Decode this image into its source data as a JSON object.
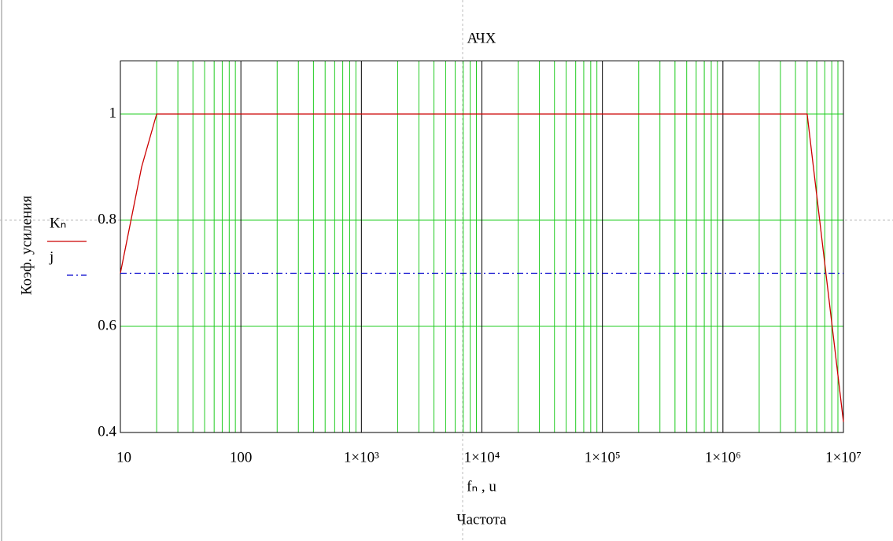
{
  "chart_data": {
    "type": "line",
    "title": "АЧХ",
    "x_label": "Частота",
    "x_expression": "fₙ , u",
    "y_label": "Коэф. усиления",
    "x_log": true,
    "grid": true,
    "minor_grid": true,
    "xlim": [
      10,
      10000000
    ],
    "ylim": [
      0.4,
      1.1
    ],
    "xticks": [
      10,
      100,
      {
        "value": 1000,
        "label": "1×10³"
      },
      {
        "value": 10000,
        "label": "1×10⁴"
      },
      {
        "value": 100000,
        "label": "1×10⁵"
      },
      {
        "value": 1000000,
        "label": "1×10⁶"
      },
      {
        "value": 10000000,
        "label": "1×10⁷"
      }
    ],
    "yticks": [
      0.4,
      0.6,
      0.8,
      1
    ],
    "series": [
      {
        "name": "Kₙ",
        "color": "#cc0000",
        "dash": "solid",
        "x": [
          10,
          15,
          20,
          100,
          1000,
          10000,
          100000,
          1000000,
          5000000,
          10000000
        ],
        "values": [
          0.7,
          0.9,
          1,
          1,
          1,
          1,
          1,
          1,
          1,
          0.42
        ]
      },
      {
        "name": "j",
        "color": "#0000cc",
        "dash": "dashdot",
        "x": [
          10,
          10000000
        ],
        "values": [
          0.7,
          0.7
        ]
      }
    ]
  }
}
